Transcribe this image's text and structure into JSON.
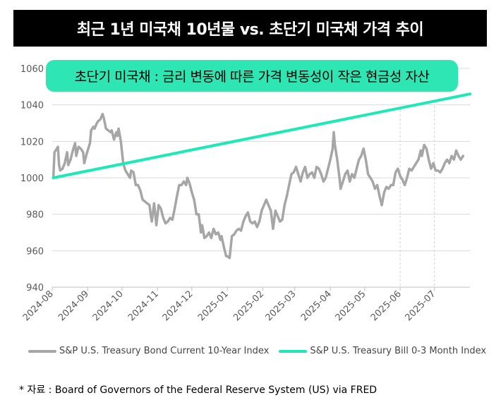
{
  "title": "최근 1년 미국채 10년물 vs. 초단기 미국채 가격 추이",
  "callout": "초단기 미국채 : 금리 변동에 따른 가격 변동성이 작은 현금성 자산",
  "source": "* 자료 : Board of Governors of the Federal Reserve System (US) via FRED",
  "colors": {
    "series1": "#a6a6a6",
    "series2": "#1de9b6",
    "grid": "#d9d9d9",
    "axis_text": "#595959"
  },
  "chart_data": {
    "type": "line",
    "ylim": [
      940,
      1060
    ],
    "yticks": [
      940,
      960,
      980,
      1000,
      1020,
      1040,
      1060
    ],
    "xlim": [
      "2024-07-31",
      "2025-07-31"
    ],
    "xticks": [
      "2024-08",
      "2024-09",
      "2024-10",
      "2024-11",
      "2024-12",
      "2025-01",
      "2025-02",
      "2025-03",
      "2025-04",
      "2025-05",
      "2025-06",
      "2025-07"
    ],
    "xtick_dates": [
      "2024-07-31",
      "2024-08-31",
      "2024-09-30",
      "2024-10-31",
      "2024-11-30",
      "2024-12-31",
      "2025-01-31",
      "2025-02-28",
      "2025-03-31",
      "2025-04-30",
      "2025-05-31",
      "2025-06-30"
    ],
    "vertical_dashed_lines": [
      "2025-05-31",
      "2025-06-30"
    ],
    "grid": "horizontal",
    "legend": "bottom",
    "series": [
      {
        "name": "S&P U.S. Treasury Bond Current 10-Year Index",
        "points": [
          [
            "2024-08-01",
            1000
          ],
          [
            "2024-08-02",
            1014
          ],
          [
            "2024-08-04",
            1016
          ],
          [
            "2024-08-05",
            1017
          ],
          [
            "2024-08-06",
            1007
          ],
          [
            "2024-08-07",
            1004
          ],
          [
            "2024-08-09",
            1005
          ],
          [
            "2024-08-11",
            1008
          ],
          [
            "2024-08-13",
            1014
          ],
          [
            "2024-08-14",
            1007
          ],
          [
            "2024-08-16",
            1010
          ],
          [
            "2024-08-18",
            1015
          ],
          [
            "2024-08-20",
            1019
          ],
          [
            "2024-08-21",
            1012
          ],
          [
            "2024-08-23",
            1017
          ],
          [
            "2024-08-25",
            1016
          ],
          [
            "2024-08-27",
            1014
          ],
          [
            "2024-08-28",
            1008
          ],
          [
            "2024-08-30",
            1013
          ],
          [
            "2024-09-02",
            1019
          ],
          [
            "2024-09-03",
            1026
          ],
          [
            "2024-09-05",
            1028
          ],
          [
            "2024-09-06",
            1027
          ],
          [
            "2024-09-08",
            1030
          ],
          [
            "2024-09-09",
            1031
          ],
          [
            "2024-09-11",
            1032
          ],
          [
            "2024-09-13",
            1035
          ],
          [
            "2024-09-14",
            1033
          ],
          [
            "2024-09-16",
            1027
          ],
          [
            "2024-09-18",
            1026
          ],
          [
            "2024-09-20",
            1025
          ],
          [
            "2024-09-21",
            1026
          ],
          [
            "2024-09-23",
            1021
          ],
          [
            "2024-09-25",
            1025
          ],
          [
            "2024-09-26",
            1023
          ],
          [
            "2024-09-27",
            1027
          ],
          [
            "2024-09-29",
            1020
          ],
          [
            "2024-10-01",
            1008
          ],
          [
            "2024-10-03",
            1004
          ],
          [
            "2024-10-05",
            1002
          ],
          [
            "2024-10-07",
            1000
          ],
          [
            "2024-10-08",
            1004
          ],
          [
            "2024-10-10",
            1003
          ],
          [
            "2024-10-12",
            996
          ],
          [
            "2024-10-14",
            996
          ],
          [
            "2024-10-16",
            993
          ],
          [
            "2024-10-18",
            988
          ],
          [
            "2024-10-20",
            987
          ],
          [
            "2024-10-22",
            986
          ],
          [
            "2024-10-24",
            985
          ],
          [
            "2024-10-25",
            980
          ],
          [
            "2024-10-26",
            976
          ],
          [
            "2024-10-28",
            986
          ],
          [
            "2024-10-29",
            980
          ],
          [
            "2024-10-30",
            974
          ],
          [
            "2024-11-01",
            985
          ],
          [
            "2024-11-03",
            983
          ],
          [
            "2024-11-05",
            978
          ],
          [
            "2024-11-07",
            975
          ],
          [
            "2024-11-09",
            976
          ],
          [
            "2024-11-11",
            978
          ],
          [
            "2024-11-13",
            977
          ],
          [
            "2024-11-15",
            983
          ],
          [
            "2024-11-17",
            990
          ],
          [
            "2024-11-19",
            996
          ],
          [
            "2024-11-21",
            996
          ],
          [
            "2024-11-23",
            998
          ],
          [
            "2024-11-25",
            996
          ],
          [
            "2024-11-26",
            1000
          ],
          [
            "2024-11-28",
            997
          ],
          [
            "2024-11-30",
            992
          ],
          [
            "2024-12-02",
            988
          ],
          [
            "2024-12-04",
            980
          ],
          [
            "2024-12-06",
            980
          ],
          [
            "2024-12-08",
            970
          ],
          [
            "2024-12-09",
            974
          ],
          [
            "2024-12-11",
            967
          ],
          [
            "2024-12-13",
            968
          ],
          [
            "2024-12-15",
            970
          ],
          [
            "2024-12-17",
            967
          ],
          [
            "2024-12-19",
            972
          ],
          [
            "2024-12-21",
            969
          ],
          [
            "2024-12-23",
            970
          ],
          [
            "2024-12-25",
            966
          ],
          [
            "2024-12-26",
            968
          ],
          [
            "2024-12-28",
            962
          ],
          [
            "2024-12-30",
            957
          ],
          [
            "2024-12-31",
            957
          ],
          [
            "2025-01-02",
            956
          ],
          [
            "2025-01-04",
            968
          ],
          [
            "2025-01-06",
            969
          ],
          [
            "2025-01-08",
            971
          ],
          [
            "2025-01-10",
            972
          ],
          [
            "2025-01-12",
            971
          ],
          [
            "2025-01-14",
            976
          ],
          [
            "2025-01-16",
            979
          ],
          [
            "2025-01-18",
            981
          ],
          [
            "2025-01-20",
            976
          ],
          [
            "2025-01-22",
            975
          ],
          [
            "2025-01-24",
            976
          ],
          [
            "2025-01-26",
            973
          ],
          [
            "2025-01-28",
            976
          ],
          [
            "2025-01-30",
            982
          ],
          [
            "2025-02-01",
            985
          ],
          [
            "2025-02-03",
            988
          ],
          [
            "2025-02-05",
            985
          ],
          [
            "2025-02-07",
            982
          ],
          [
            "2025-02-09",
            972
          ],
          [
            "2025-02-11",
            982
          ],
          [
            "2025-02-13",
            979
          ],
          [
            "2025-02-15",
            976
          ],
          [
            "2025-02-17",
            977
          ],
          [
            "2025-02-19",
            985
          ],
          [
            "2025-02-21",
            990
          ],
          [
            "2025-02-23",
            996
          ],
          [
            "2025-02-25",
            1002
          ],
          [
            "2025-02-27",
            1003
          ],
          [
            "2025-03-01",
            1006
          ],
          [
            "2025-03-03",
            1002
          ],
          [
            "2025-03-05",
            998
          ],
          [
            "2025-03-07",
            1003
          ],
          [
            "2025-03-09",
            1006
          ],
          [
            "2025-03-11",
            1000
          ],
          [
            "2025-03-13",
            1002
          ],
          [
            "2025-03-15",
            1003
          ],
          [
            "2025-03-17",
            1000
          ],
          [
            "2025-03-19",
            1006
          ],
          [
            "2025-03-21",
            1005
          ],
          [
            "2025-03-23",
            1002
          ],
          [
            "2025-03-25",
            998
          ],
          [
            "2025-03-27",
            1000
          ],
          [
            "2025-03-29",
            1005
          ],
          [
            "2025-03-31",
            1010
          ],
          [
            "2025-04-02",
            1016
          ],
          [
            "2025-04-03",
            1025
          ],
          [
            "2025-04-04",
            1018
          ],
          [
            "2025-04-06",
            1010
          ],
          [
            "2025-04-08",
            1000
          ],
          [
            "2025-04-09",
            994
          ],
          [
            "2025-04-11",
            998
          ],
          [
            "2025-04-13",
            1002
          ],
          [
            "2025-04-15",
            1004
          ],
          [
            "2025-04-17",
            998
          ],
          [
            "2025-04-19",
            1002
          ],
          [
            "2025-04-21",
            1000
          ],
          [
            "2025-04-23",
            1005
          ],
          [
            "2025-04-25",
            1010
          ],
          [
            "2025-04-27",
            1012
          ],
          [
            "2025-04-29",
            1016
          ],
          [
            "2025-05-01",
            1010
          ],
          [
            "2025-05-03",
            1002
          ],
          [
            "2025-05-05",
            1000
          ],
          [
            "2025-05-07",
            998
          ],
          [
            "2025-05-09",
            994
          ],
          [
            "2025-05-11",
            996
          ],
          [
            "2025-05-13",
            990
          ],
          [
            "2025-05-15",
            985
          ],
          [
            "2025-05-17",
            992
          ],
          [
            "2025-05-19",
            995
          ],
          [
            "2025-05-21",
            994
          ],
          [
            "2025-05-23",
            996
          ],
          [
            "2025-05-25",
            996
          ],
          [
            "2025-05-27",
            1003
          ],
          [
            "2025-05-29",
            1005
          ],
          [
            "2025-05-31",
            1001
          ],
          [
            "2025-06-02",
            999
          ],
          [
            "2025-06-04",
            996
          ],
          [
            "2025-06-06",
            1000
          ],
          [
            "2025-06-08",
            1005
          ],
          [
            "2025-06-10",
            1004
          ],
          [
            "2025-06-12",
            1006
          ],
          [
            "2025-06-14",
            1008
          ],
          [
            "2025-06-16",
            1010
          ],
          [
            "2025-06-18",
            1015
          ],
          [
            "2025-06-19",
            1012
          ],
          [
            "2025-06-21",
            1018
          ],
          [
            "2025-06-23",
            1016
          ],
          [
            "2025-06-25",
            1010
          ],
          [
            "2025-06-27",
            1005
          ],
          [
            "2025-06-29",
            1008
          ],
          [
            "2025-07-01",
            1004
          ],
          [
            "2025-07-03",
            1004
          ],
          [
            "2025-07-05",
            1003
          ],
          [
            "2025-07-07",
            1005
          ],
          [
            "2025-07-09",
            1008
          ],
          [
            "2025-07-11",
            1010
          ],
          [
            "2025-07-13",
            1008
          ],
          [
            "2025-07-15",
            1012
          ],
          [
            "2025-07-17",
            1010
          ],
          [
            "2025-07-19",
            1015
          ],
          [
            "2025-07-21",
            1012
          ],
          [
            "2025-07-23",
            1010
          ],
          [
            "2025-07-25",
            1012
          ]
        ]
      },
      {
        "name": "S&P U.S. Treasury Bill 0-3 Month Index",
        "points": [
          [
            "2024-08-01",
            1000
          ],
          [
            "2025-07-31",
            1046
          ]
        ]
      }
    ]
  }
}
